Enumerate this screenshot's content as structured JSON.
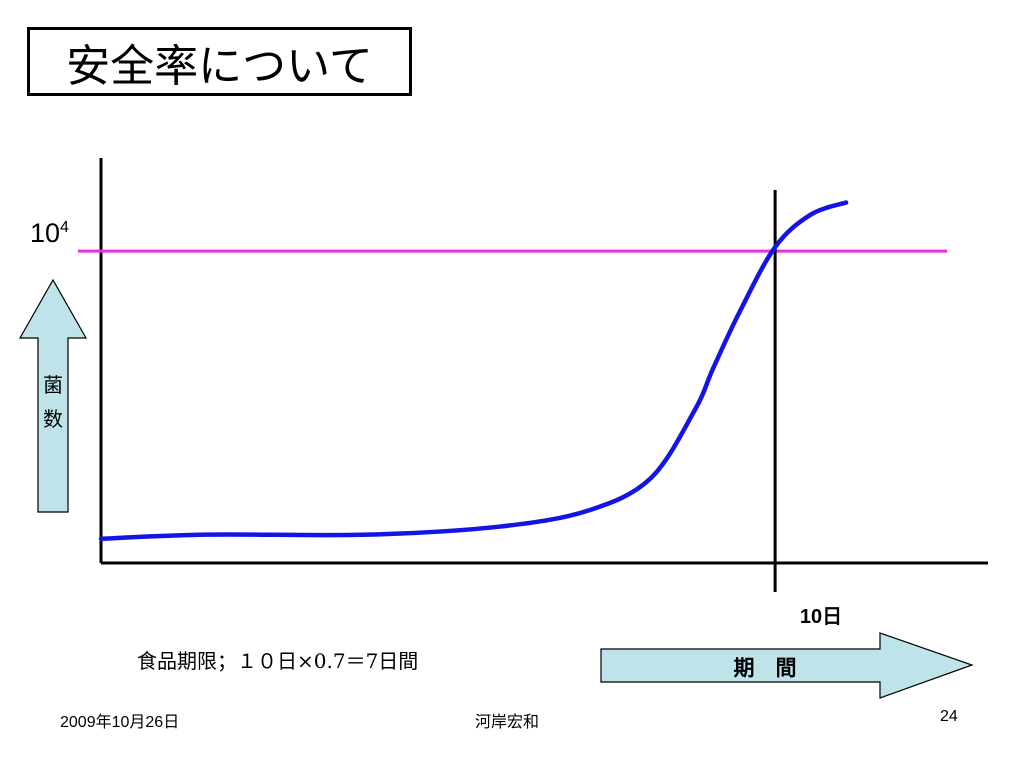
{
  "slide": {
    "title": "安全率について",
    "annotation": "食品期限；１０日×0.7＝7日間",
    "footer": {
      "date": "2009年10月26日",
      "author": "河岸宏和",
      "page": "24"
    }
  },
  "colors": {
    "curve": "#1414E6",
    "threshold": "#E633D9",
    "arrow_fill": "#BEE3E8",
    "axis": "#000000"
  },
  "chart_data": {
    "type": "line",
    "xlabel": "期　間",
    "ylabel": "菌\n数",
    "y_threshold": {
      "label_base": "10",
      "label_exp": "4"
    },
    "x_marker": {
      "label": "10日"
    },
    "series": [
      {
        "values": [
          [
            0.0,
            0.06
          ],
          [
            0.12,
            0.07
          ],
          [
            0.3,
            0.07
          ],
          [
            0.45,
            0.09
          ],
          [
            0.55,
            0.13
          ],
          [
            0.62,
            0.21
          ],
          [
            0.67,
            0.38
          ],
          [
            0.69,
            0.48
          ],
          [
            0.72,
            0.62
          ],
          [
            0.76,
            0.78
          ],
          [
            0.8,
            0.86
          ],
          [
            0.84,
            0.89
          ]
        ]
      }
    ],
    "threshold_y": 0.77,
    "marker_x": 0.76
  }
}
